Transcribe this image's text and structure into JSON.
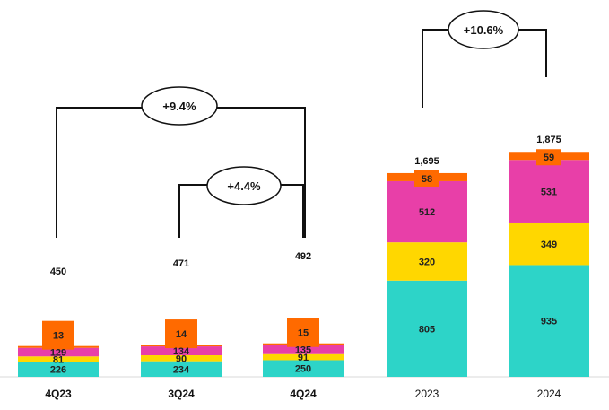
{
  "chart_data": {
    "type": "bar",
    "stacked": true,
    "categories": [
      "4Q23",
      "3Q24",
      "4Q24",
      "2023",
      "2024"
    ],
    "series": [
      {
        "values": [
          226,
          234,
          250,
          805,
          935
        ],
        "color": "#2DD4C8"
      },
      {
        "values": [
          81,
          90,
          91,
          320,
          349
        ],
        "color": "#FFD700"
      },
      {
        "values": [
          129,
          134,
          135,
          512,
          531
        ],
        "color": "#E83FA8"
      },
      {
        "values": [
          13,
          14,
          15,
          58,
          59
        ],
        "color": "#FF6A00"
      }
    ],
    "totals": [
      "450",
      "471",
      "492",
      "1,695",
      "1,875"
    ],
    "annotations": [
      {
        "text": "+9.4%",
        "from": "4Q23",
        "to": "4Q24"
      },
      {
        "text": "+4.4%",
        "from": "3Q24",
        "to": "4Q24"
      },
      {
        "text": "+10.6%",
        "from": "2023",
        "to": "2024"
      }
    ],
    "title": "",
    "xlabel": "",
    "ylabel": "",
    "legend": "none",
    "grid": false
  }
}
